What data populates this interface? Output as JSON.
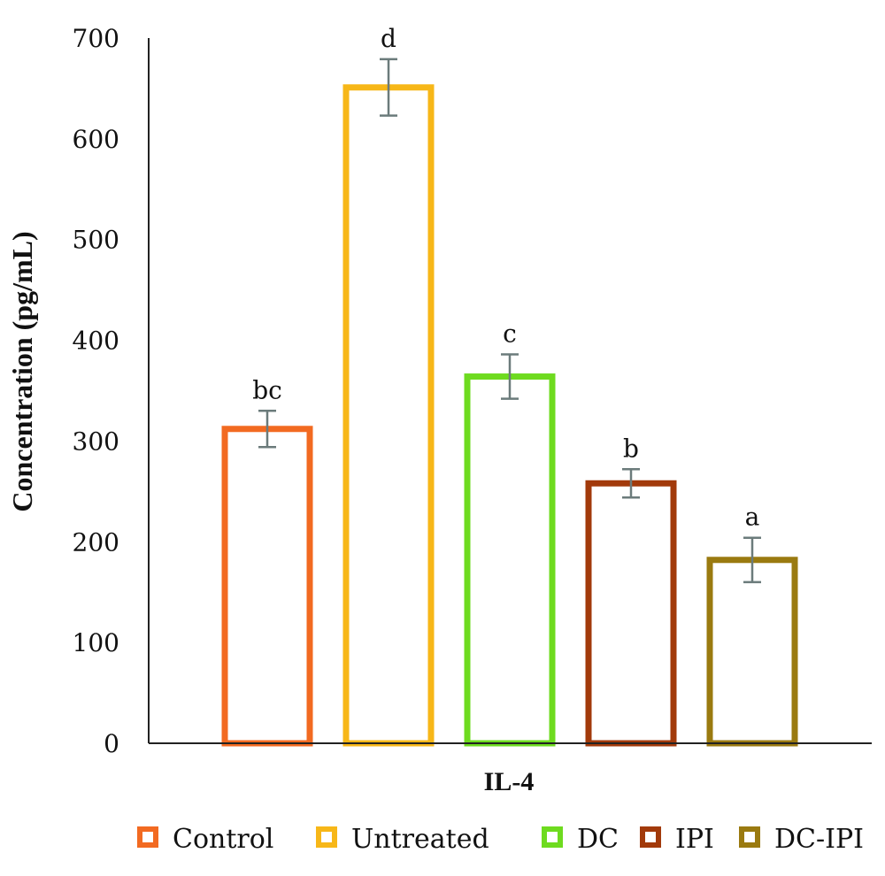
{
  "chart_data": {
    "type": "bar",
    "title": "",
    "xlabel": "",
    "ylabel": "Concentration (pg/mL)",
    "categories": [
      "IL-4"
    ],
    "ylim": [
      0,
      700
    ],
    "yticks": [
      0,
      100,
      200,
      300,
      400,
      500,
      600,
      700
    ],
    "grid": false,
    "legend_position": "bottom",
    "series": [
      {
        "name": "Control",
        "values": [
          312
        ],
        "error": [
          18
        ],
        "label": "bc",
        "color": "#F26A21"
      },
      {
        "name": "Untreated",
        "values": [
          651
        ],
        "error": [
          28
        ],
        "label": "d",
        "color": "#F7B718"
      },
      {
        "name": "DC",
        "values": [
          364
        ],
        "error": [
          22
        ],
        "label": "c",
        "color": "#6EDB1F"
      },
      {
        "name": "IPI",
        "values": [
          258
        ],
        "error": [
          14
        ],
        "label": "b",
        "color": "#A23A0B"
      },
      {
        "name": "DC-IPI",
        "values": [
          182
        ],
        "error": [
          22
        ],
        "label": "a",
        "color": "#9A7A10"
      }
    ]
  }
}
